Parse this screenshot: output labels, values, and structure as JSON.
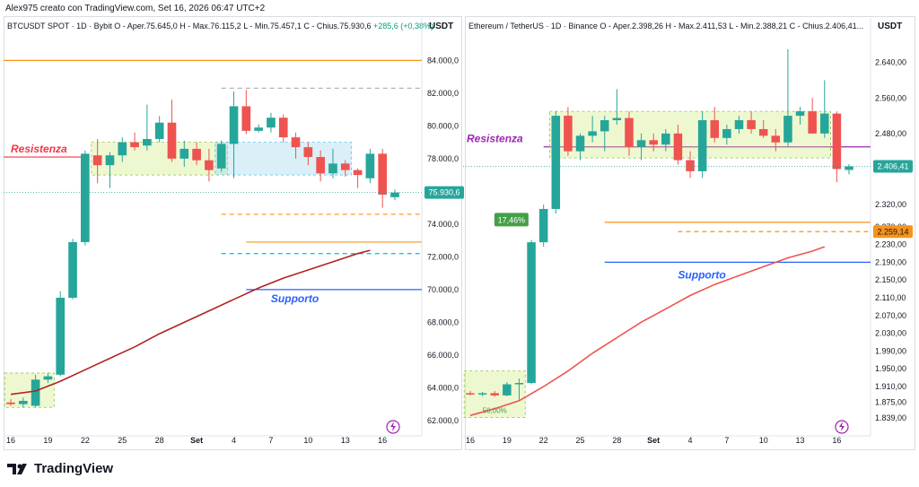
{
  "top_caption": "Alex975 creato con TradingView.com, Set 16, 2026 06:47 UTC+2",
  "brand": {
    "name": "TradingView",
    "logo_icon": "tradingview-logo-icon"
  },
  "colors": {
    "up": "#26a69a",
    "down": "#ef5350",
    "ma": "#b22222",
    "ma2": "#ef5350",
    "support": "#2962ff",
    "resistance": "#f23645",
    "orange": "#f7931a",
    "cyan": "#00bcd4"
  },
  "left": {
    "header": {
      "symbol": "BTCUSDT SPOT · 1D · Bybit",
      "open": "O - Aper.75.645,0",
      "high": "H - Max.76.115,2",
      "low": "L - Min.75.457,1",
      "close": "C - Chius.75.930,6",
      "change": "+285,6 (+0,38%)"
    },
    "axis_unit": "USDT",
    "last_price": "75.930,6",
    "labels": {
      "resistance": "Resistenza",
      "support": "Supporto"
    },
    "logo_icon": "lightning-icon"
  },
  "right": {
    "header": {
      "symbol": "Ethereum / TetherUS · 1D · Binance",
      "open": "O - Aper.2.398,26",
      "high": "H - Max.2.411,53",
      "low": "L - Min.2.388,21",
      "close": "C - Chius.2.406,41..."
    },
    "axis_unit": "USDT",
    "last_price": "2.406,41",
    "extra_price": "2.259,14",
    "labels": {
      "resistance": "Resistenza",
      "support": "Supporto",
      "gain_pct": "17,46%",
      "low_pct": "50,00%"
    },
    "logo_icon": "lightning-icon"
  },
  "chart_data": [
    {
      "type": "candlestick",
      "title": "BTCUSDT SPOT · 1D · Bybit",
      "ylabel": "USDT",
      "ylim": [
        61500,
        85500
      ],
      "yticks": [
        62000,
        64000,
        66000,
        68000,
        70000,
        72000,
        74000,
        76000,
        78000,
        80000,
        82000,
        84000
      ],
      "ytick_labels": [
        "62.000,0",
        "64.000,0",
        "66.000,0",
        "68.000,0",
        "70.000,0",
        "72.000,0",
        "74.000,0",
        "76.000,0",
        "78.000,0",
        "80.000,0",
        "82.000,0",
        "84.000,0"
      ],
      "xtick_labels": [
        "16",
        "19",
        "22",
        "25",
        "28",
        "Set",
        "4",
        "7",
        "10",
        "13",
        "16"
      ],
      "xtick_index": [
        0,
        3,
        6,
        9,
        12,
        15,
        18,
        21,
        24,
        27,
        30
      ],
      "candles": [
        {
          "o": 63100,
          "h": 63300,
          "l": 62900,
          "c": 63000
        },
        {
          "o": 63000,
          "h": 63400,
          "l": 62800,
          "c": 63200
        },
        {
          "o": 62900,
          "h": 64800,
          "l": 62800,
          "c": 64500
        },
        {
          "o": 64500,
          "h": 64900,
          "l": 64300,
          "c": 64700
        },
        {
          "o": 64800,
          "h": 69900,
          "l": 64700,
          "c": 69500
        },
        {
          "o": 69500,
          "h": 73100,
          "l": 69400,
          "c": 72900
        },
        {
          "o": 72900,
          "h": 78500,
          "l": 72700,
          "c": 78300
        },
        {
          "o": 78200,
          "h": 79200,
          "l": 76500,
          "c": 77600
        },
        {
          "o": 77600,
          "h": 78400,
          "l": 76200,
          "c": 78200
        },
        {
          "o": 78200,
          "h": 79300,
          "l": 77800,
          "c": 79000
        },
        {
          "o": 79000,
          "h": 79600,
          "l": 78500,
          "c": 78700
        },
        {
          "o": 78800,
          "h": 81300,
          "l": 78500,
          "c": 79200
        },
        {
          "o": 79200,
          "h": 80600,
          "l": 79000,
          "c": 80200
        },
        {
          "o": 80200,
          "h": 81600,
          "l": 77800,
          "c": 78000
        },
        {
          "o": 78000,
          "h": 79100,
          "l": 77500,
          "c": 78600
        },
        {
          "o": 78600,
          "h": 79000,
          "l": 77600,
          "c": 77900
        },
        {
          "o": 77900,
          "h": 78600,
          "l": 76600,
          "c": 77300
        },
        {
          "o": 77400,
          "h": 79100,
          "l": 77200,
          "c": 78900
        },
        {
          "o": 78900,
          "h": 82100,
          "l": 76800,
          "c": 81200
        },
        {
          "o": 81200,
          "h": 82200,
          "l": 79500,
          "c": 79700
        },
        {
          "o": 79700,
          "h": 80100,
          "l": 79600,
          "c": 79900
        },
        {
          "o": 79900,
          "h": 80800,
          "l": 79600,
          "c": 80500
        },
        {
          "o": 80500,
          "h": 80700,
          "l": 79000,
          "c": 79300
        },
        {
          "o": 79300,
          "h": 79600,
          "l": 78000,
          "c": 78700
        },
        {
          "o": 78700,
          "h": 79000,
          "l": 77600,
          "c": 78100
        },
        {
          "o": 78100,
          "h": 78500,
          "l": 76600,
          "c": 77100
        },
        {
          "o": 77100,
          "h": 78600,
          "l": 76800,
          "c": 77700
        },
        {
          "o": 77700,
          "h": 77900,
          "l": 76900,
          "c": 77300
        },
        {
          "o": 77300,
          "h": 77400,
          "l": 76200,
          "c": 77000
        },
        {
          "o": 76800,
          "h": 78600,
          "l": 76500,
          "c": 78300
        },
        {
          "o": 78300,
          "h": 78600,
          "l": 75000,
          "c": 75800
        },
        {
          "o": 75645,
          "h": 76115,
          "l": 75457,
          "c": 75930
        }
      ],
      "ma": [
        [
          0,
          63600
        ],
        [
          2,
          63800
        ],
        [
          4,
          64400
        ],
        [
          6,
          65100
        ],
        [
          8,
          65800
        ],
        [
          10,
          66500
        ],
        [
          12,
          67300
        ],
        [
          14,
          68000
        ],
        [
          16,
          68700
        ],
        [
          18,
          69400
        ],
        [
          20,
          70100
        ],
        [
          22,
          70700
        ],
        [
          24,
          71200
        ],
        [
          26,
          71700
        ],
        [
          28,
          72200
        ],
        [
          29,
          72400
        ]
      ],
      "levels": [
        {
          "name": "orange-top",
          "y": 84000,
          "color": "#f7931a",
          "dash": false
        },
        {
          "name": "grey-dash",
          "y": 82300,
          "color": "#b2b5be",
          "dash": true
        },
        {
          "name": "resistance",
          "y": 78100,
          "color": "#f23645",
          "dash": false,
          "label": "Resistenza"
        },
        {
          "name": "orange-dash",
          "y": 74600,
          "color": "#f7931a",
          "dash": true
        },
        {
          "name": "orange-solid",
          "y": 72900,
          "color": "#f7931a",
          "dash": false
        },
        {
          "name": "cyan-dash",
          "y": 72200,
          "color": "#00bcd4",
          "dash": true
        },
        {
          "name": "support",
          "y": 70000,
          "color": "#2962ff",
          "dash": false,
          "label": "Supporto"
        }
      ]
    },
    {
      "type": "candlestick",
      "title": "Ethereum / TetherUS · 1D · Binance",
      "ylabel": "USDT",
      "ylim": [
        1815,
        2700
      ],
      "yticks": [
        1839,
        1875,
        1910,
        1950,
        1990,
        2030,
        2070,
        2110,
        2150,
        2190,
        2230,
        2270,
        2320,
        2400,
        2480,
        2560,
        2640
      ],
      "ytick_labels": [
        "1.839,00",
        "1.875,00",
        "1.910,00",
        "1.950,00",
        "1.990,00",
        "2.030,00",
        "2.070,00",
        "2.110,00",
        "2.150,00",
        "2.190,00",
        "2.230,00",
        "2.270,00",
        "2.320,00",
        "2.400,00",
        "2.480,00",
        "2.560,00",
        "2.640,00"
      ],
      "xtick_labels": [
        "16",
        "19",
        "22",
        "25",
        "28",
        "Set",
        "4",
        "7",
        "10",
        "13",
        "16"
      ],
      "xtick_index": [
        0,
        3,
        6,
        9,
        12,
        15,
        18,
        21,
        24,
        27,
        30
      ],
      "candles": [
        {
          "o": 1895,
          "h": 1900,
          "l": 1890,
          "c": 1893
        },
        {
          "o": 1893,
          "h": 1898,
          "l": 1888,
          "c": 1895
        },
        {
          "o": 1895,
          "h": 1900,
          "l": 1887,
          "c": 1890
        },
        {
          "o": 1890,
          "h": 1920,
          "l": 1888,
          "c": 1915
        },
        {
          "o": 1915,
          "h": 1928,
          "l": 1880,
          "c": 1918
        },
        {
          "o": 1918,
          "h": 2240,
          "l": 1915,
          "c": 2235
        },
        {
          "o": 2235,
          "h": 2320,
          "l": 2225,
          "c": 2310
        },
        {
          "o": 2310,
          "h": 2530,
          "l": 2300,
          "c": 2520
        },
        {
          "o": 2520,
          "h": 2540,
          "l": 2430,
          "c": 2440
        },
        {
          "o": 2440,
          "h": 2480,
          "l": 2420,
          "c": 2475
        },
        {
          "o": 2475,
          "h": 2520,
          "l": 2460,
          "c": 2485
        },
        {
          "o": 2485,
          "h": 2520,
          "l": 2440,
          "c": 2510
        },
        {
          "o": 2510,
          "h": 2580,
          "l": 2500,
          "c": 2515
        },
        {
          "o": 2515,
          "h": 2530,
          "l": 2430,
          "c": 2450
        },
        {
          "o": 2450,
          "h": 2480,
          "l": 2420,
          "c": 2465
        },
        {
          "o": 2465,
          "h": 2480,
          "l": 2440,
          "c": 2455
        },
        {
          "o": 2455,
          "h": 2490,
          "l": 2440,
          "c": 2480
        },
        {
          "o": 2480,
          "h": 2500,
          "l": 2410,
          "c": 2420
        },
        {
          "o": 2420,
          "h": 2440,
          "l": 2380,
          "c": 2395
        },
        {
          "o": 2395,
          "h": 2530,
          "l": 2380,
          "c": 2510
        },
        {
          "o": 2510,
          "h": 2540,
          "l": 2460,
          "c": 2470
        },
        {
          "o": 2470,
          "h": 2500,
          "l": 2455,
          "c": 2490
        },
        {
          "o": 2490,
          "h": 2520,
          "l": 2480,
          "c": 2510
        },
        {
          "o": 2510,
          "h": 2530,
          "l": 2480,
          "c": 2490
        },
        {
          "o": 2490,
          "h": 2510,
          "l": 2470,
          "c": 2475
        },
        {
          "o": 2475,
          "h": 2490,
          "l": 2440,
          "c": 2460
        },
        {
          "o": 2460,
          "h": 2670,
          "l": 2450,
          "c": 2520
        },
        {
          "o": 2520,
          "h": 2540,
          "l": 2500,
          "c": 2530
        },
        {
          "o": 2530,
          "h": 2560,
          "l": 2480,
          "c": 2480
        },
        {
          "o": 2480,
          "h": 2600,
          "l": 2470,
          "c": 2525
        },
        {
          "o": 2525,
          "h": 2530,
          "l": 2370,
          "c": 2400
        },
        {
          "o": 2398,
          "h": 2411,
          "l": 2388,
          "c": 2406
        }
      ],
      "ma": [
        [
          0,
          1845
        ],
        [
          2,
          1860
        ],
        [
          4,
          1878
        ],
        [
          6,
          1910
        ],
        [
          8,
          1945
        ],
        [
          10,
          1985
        ],
        [
          12,
          2020
        ],
        [
          14,
          2055
        ],
        [
          16,
          2085
        ],
        [
          18,
          2115
        ],
        [
          20,
          2140
        ],
        [
          22,
          2160
        ],
        [
          24,
          2180
        ],
        [
          26,
          2200
        ],
        [
          28,
          2215
        ],
        [
          29,
          2225
        ]
      ],
      "levels": [
        {
          "name": "resistance",
          "y": 2450,
          "color": "#9c27b0",
          "dash": false,
          "label": "Resistenza"
        },
        {
          "name": "orange-solid",
          "y": 2280,
          "color": "#f7931a",
          "dash": false
        },
        {
          "name": "orange-dash",
          "y": 2259,
          "color": "#f7931a",
          "dash": true
        },
        {
          "name": "support",
          "y": 2190,
          "color": "#2962ff",
          "dash": false,
          "label": "Supporto"
        }
      ]
    }
  ]
}
